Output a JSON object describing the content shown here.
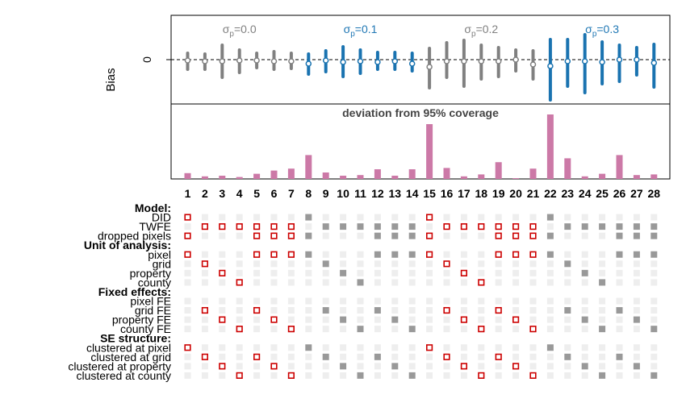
{
  "chart_data": {
    "type": "specification-curve",
    "panels": {
      "bias": {
        "ylabel": "Bias",
        "y_tick_label": "0",
        "reference_line": "dashed at 0",
        "group_labels": [
          {
            "sigma_text": "σ",
            "subscript": "p",
            "value_text": "=0.0",
            "color": "#808080",
            "specs": [
              1,
              7
            ]
          },
          {
            "sigma_text": "σ",
            "subscript": "p",
            "value_text": "=0.1",
            "color": "#1f77b4",
            "specs": [
              8,
              14
            ]
          },
          {
            "sigma_text": "σ",
            "subscript": "p",
            "value_text": "=0.2",
            "color": "#808080",
            "specs": [
              15,
              21
            ]
          },
          {
            "sigma_text": "σ",
            "subscript": "p",
            "value_text": "=0.3",
            "color": "#1f77b4",
            "specs": [
              22,
              28
            ]
          }
        ],
        "colors": {
          "gray": "#808080",
          "blue": "#1a73b0"
        },
        "series": [
          {
            "spec": 1,
            "lo": -0.12,
            "hi": 0.08,
            "mean": -0.01,
            "group": "gray"
          },
          {
            "spec": 2,
            "lo": -0.12,
            "hi": 0.07,
            "mean": -0.02,
            "group": "gray"
          },
          {
            "spec": 3,
            "lo": -0.22,
            "hi": 0.18,
            "mean": -0.02,
            "group": "gray"
          },
          {
            "spec": 4,
            "lo": -0.16,
            "hi": 0.12,
            "mean": -0.01,
            "group": "gray"
          },
          {
            "spec": 5,
            "lo": -0.1,
            "hi": 0.08,
            "mean": -0.01,
            "group": "gray"
          },
          {
            "spec": 6,
            "lo": -0.12,
            "hi": 0.1,
            "mean": -0.02,
            "group": "gray"
          },
          {
            "spec": 7,
            "lo": -0.11,
            "hi": 0.08,
            "mean": -0.02,
            "group": "gray"
          },
          {
            "spec": 8,
            "lo": -0.18,
            "hi": 0.07,
            "mean": -0.05,
            "group": "blue"
          },
          {
            "spec": 9,
            "lo": -0.15,
            "hi": 0.11,
            "mean": -0.01,
            "group": "blue"
          },
          {
            "spec": 10,
            "lo": -0.21,
            "hi": 0.16,
            "mean": -0.03,
            "group": "blue"
          },
          {
            "spec": 11,
            "lo": -0.17,
            "hi": 0.12,
            "mean": -0.02,
            "group": "blue"
          },
          {
            "spec": 12,
            "lo": -0.12,
            "hi": 0.09,
            "mean": -0.03,
            "group": "blue"
          },
          {
            "spec": 13,
            "lo": -0.12,
            "hi": 0.09,
            "mean": -0.02,
            "group": "blue"
          },
          {
            "spec": 14,
            "lo": -0.14,
            "hi": 0.08,
            "mean": -0.05,
            "group": "blue"
          },
          {
            "spec": 15,
            "lo": -0.35,
            "hi": 0.14,
            "mean": -0.09,
            "group": "gray"
          },
          {
            "spec": 16,
            "lo": -0.22,
            "hi": 0.21,
            "mean": -0.02,
            "group": "gray"
          },
          {
            "spec": 17,
            "lo": -0.33,
            "hi": 0.24,
            "mean": -0.02,
            "group": "gray"
          },
          {
            "spec": 18,
            "lo": -0.24,
            "hi": 0.18,
            "mean": -0.02,
            "group": "gray"
          },
          {
            "spec": 19,
            "lo": -0.21,
            "hi": 0.15,
            "mean": -0.02,
            "group": "gray"
          },
          {
            "spec": 20,
            "lo": -0.14,
            "hi": 0.12,
            "mean": 0.0,
            "group": "gray"
          },
          {
            "spec": 21,
            "lo": -0.24,
            "hi": 0.11,
            "mean": -0.06,
            "group": "gray"
          },
          {
            "spec": 22,
            "lo": -0.5,
            "hi": 0.25,
            "mean": -0.08,
            "group": "blue"
          },
          {
            "spec": 23,
            "lo": -0.33,
            "hi": 0.25,
            "mean": -0.02,
            "group": "blue"
          },
          {
            "spec": 24,
            "lo": -0.41,
            "hi": 0.31,
            "mean": -0.02,
            "group": "blue"
          },
          {
            "spec": 25,
            "lo": -0.3,
            "hi": 0.22,
            "mean": -0.03,
            "group": "blue"
          },
          {
            "spec": 26,
            "lo": -0.27,
            "hi": 0.18,
            "mean": 0.0,
            "group": "blue"
          },
          {
            "spec": 27,
            "lo": -0.19,
            "hi": 0.15,
            "mean": 0.0,
            "group": "blue"
          },
          {
            "spec": 28,
            "lo": -0.34,
            "hi": 0.19,
            "mean": -0.04,
            "group": "blue"
          }
        ]
      },
      "coverage": {
        "title": "deviation from 95% coverage",
        "color": "#cc79a7",
        "values": [
          0.09,
          0.04,
          0.05,
          0.03,
          0.08,
          0.13,
          0.16,
          0.37,
          0.1,
          0.05,
          0.06,
          0.15,
          0.05,
          0.15,
          0.85,
          0.17,
          0.04,
          0.07,
          0.26,
          0.01,
          0.16,
          1.0,
          0.32,
          0.04,
          0.08,
          0.37,
          0.06,
          0.07
        ]
      }
    },
    "x_tick_labels": [
      "1",
      "2",
      "3",
      "4",
      "5",
      "6",
      "7",
      "8",
      "9",
      "10",
      "11",
      "12",
      "13",
      "14",
      "15",
      "16",
      "17",
      "18",
      "19",
      "20",
      "21",
      "22",
      "23",
      "24",
      "25",
      "26",
      "27",
      "28"
    ],
    "indicator_rows": [
      {
        "label": "Model:",
        "header": true
      },
      {
        "label": "DID",
        "header": false,
        "on": [
          1,
          8,
          15,
          22
        ]
      },
      {
        "label": "TWFE",
        "header": false,
        "on": [
          2,
          3,
          4,
          5,
          6,
          7,
          9,
          10,
          11,
          12,
          13,
          14,
          16,
          17,
          18,
          19,
          20,
          21,
          23,
          24,
          25,
          26,
          27,
          28
        ]
      },
      {
        "label": "dropped pixels",
        "header": false,
        "on": [
          1,
          5,
          6,
          7,
          8,
          12,
          13,
          14,
          15,
          19,
          20,
          21,
          22,
          26,
          27,
          28
        ]
      },
      {
        "label": "Unit of analysis:",
        "header": true
      },
      {
        "label": "pixel",
        "header": false,
        "on": [
          1,
          5,
          6,
          7,
          8,
          12,
          13,
          14,
          15,
          19,
          20,
          21,
          22,
          26,
          27,
          28
        ]
      },
      {
        "label": "grid",
        "header": false,
        "on": [
          2,
          9,
          16,
          23
        ]
      },
      {
        "label": "property",
        "header": false,
        "on": [
          3,
          10,
          17,
          24
        ]
      },
      {
        "label": "county",
        "header": false,
        "on": [
          4,
          11,
          18,
          25
        ]
      },
      {
        "label": "Fixed effects:",
        "header": true
      },
      {
        "label": "pixel FE",
        "header": false,
        "on": []
      },
      {
        "label": "grid FE",
        "header": false,
        "on": [
          2,
          5,
          9,
          12,
          16,
          19,
          23,
          26
        ]
      },
      {
        "label": "property FE",
        "header": false,
        "on": [
          3,
          6,
          10,
          13,
          17,
          20,
          24,
          27
        ]
      },
      {
        "label": "county FE",
        "header": false,
        "on": [
          4,
          7,
          11,
          14,
          18,
          21,
          25,
          28
        ]
      },
      {
        "label": "SE structure:",
        "header": true
      },
      {
        "label": "clustered at pixel",
        "header": false,
        "on": [
          1,
          8,
          15,
          22
        ]
      },
      {
        "label": "clustered at grid",
        "header": false,
        "on": [
          2,
          5,
          9,
          12,
          16,
          19,
          23,
          26
        ]
      },
      {
        "label": "clustered at property",
        "header": false,
        "on": [
          3,
          6,
          10,
          13,
          17,
          20,
          24,
          27
        ]
      },
      {
        "label": "clustered at county",
        "header": false,
        "on": [
          4,
          7,
          11,
          14,
          18,
          21,
          25,
          28
        ]
      }
    ],
    "highlight_specs": [
      1,
      2,
      3,
      4,
      5,
      6,
      7,
      15,
      16,
      17,
      18,
      19,
      20,
      21
    ],
    "indicator_colors": {
      "highlight": "#cc0000",
      "on": "#999999",
      "off": "#eeeeee"
    }
  }
}
